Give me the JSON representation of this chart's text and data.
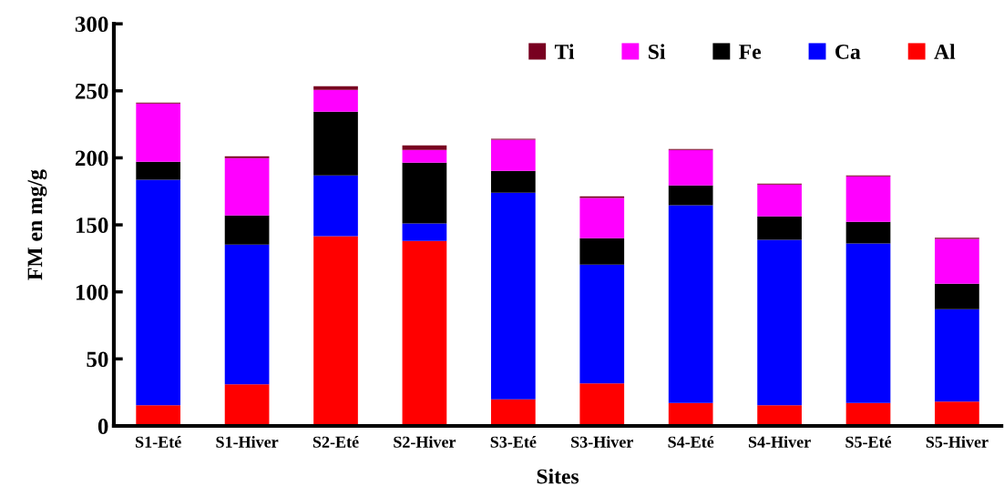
{
  "chart_data": {
    "type": "bar",
    "stacked": true,
    "xlabel": "Sites",
    "ylabel": "FM en mg/g",
    "categories": [
      "S1-Eté",
      "S1-Hiver",
      "S2-Eté",
      "S2-Hiver",
      "S3-Eté",
      "S3-Hiver",
      "S4-Eté",
      "S4-Hiver",
      "S5-Eté",
      "S5-Hiver"
    ],
    "series": [
      {
        "name": "Al",
        "color": "#ff0000",
        "values": [
          15.4,
          31.0,
          141.6,
          138.0,
          19.9,
          31.7,
          17.2,
          15.4,
          17.2,
          18.1
        ]
      },
      {
        "name": "Ca",
        "color": "#0000ff",
        "values": [
          168.3,
          104.3,
          45.3,
          13.1,
          154.1,
          88.7,
          147.5,
          123.5,
          119.0,
          69.0
        ]
      },
      {
        "name": "Fe",
        "color": "#000000",
        "values": [
          13.4,
          21.7,
          47.5,
          45.3,
          16.3,
          19.6,
          14.7,
          17.4,
          16.1,
          19.0
        ]
      },
      {
        "name": "Si",
        "color": "#ff00ff",
        "values": [
          43.4,
          42.8,
          16.3,
          9.5,
          23.3,
          30.1,
          26.5,
          23.8,
          33.9,
          33.5
        ]
      },
      {
        "name": "Ti",
        "color": "#780020",
        "values": [
          0.7,
          1.3,
          2.7,
          3.4,
          0.7,
          1.2,
          0.7,
          0.7,
          0.7,
          0.7
        ]
      }
    ],
    "ylim": [
      0,
      300
    ],
    "yticks": [
      0,
      50,
      100,
      150,
      200,
      250,
      300
    ],
    "grid": false,
    "legend": "top right"
  }
}
